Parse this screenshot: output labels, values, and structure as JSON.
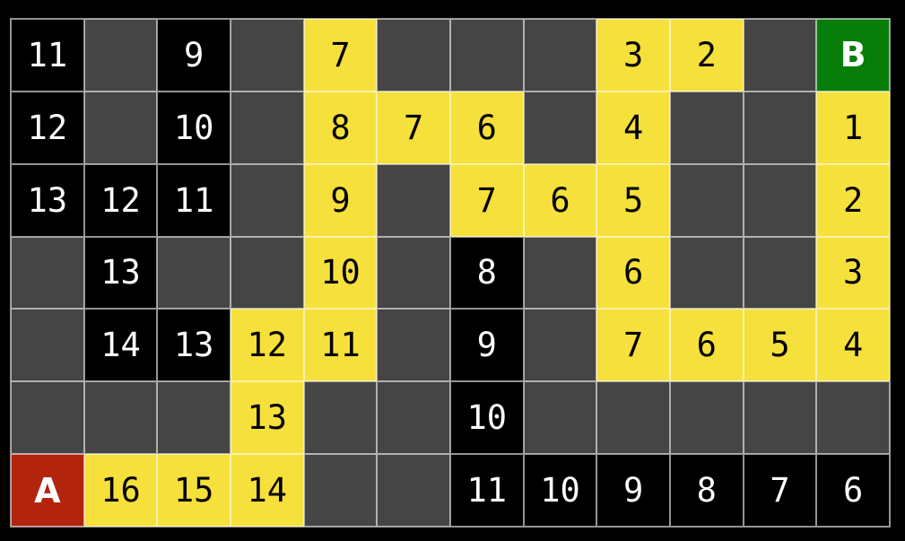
{
  "colors": {
    "background": "#000000",
    "gridline": "rgba(255,255,255,0.58)",
    "empty": "#454545",
    "visited": "#000000",
    "path": "#F6E03B",
    "start": "#B3240F",
    "goal": "#097D09",
    "text_light": "#FFFFFF",
    "text_dark": "#000000"
  },
  "start_label": "A",
  "goal_label": "B",
  "grid": {
    "rows": 7,
    "cols": 12,
    "cells": [
      [
        {
          "t": "11",
          "k": "visited"
        },
        {
          "t": "",
          "k": "empty"
        },
        {
          "t": "9",
          "k": "visited"
        },
        {
          "t": "",
          "k": "empty"
        },
        {
          "t": "7",
          "k": "path"
        },
        {
          "t": "",
          "k": "empty"
        },
        {
          "t": "",
          "k": "empty"
        },
        {
          "t": "",
          "k": "empty"
        },
        {
          "t": "3",
          "k": "path"
        },
        {
          "t": "2",
          "k": "path"
        },
        {
          "t": "",
          "k": "empty"
        },
        {
          "t": "B",
          "k": "goal"
        }
      ],
      [
        {
          "t": "12",
          "k": "visited"
        },
        {
          "t": "",
          "k": "empty"
        },
        {
          "t": "10",
          "k": "visited"
        },
        {
          "t": "",
          "k": "empty"
        },
        {
          "t": "8",
          "k": "path"
        },
        {
          "t": "7",
          "k": "path"
        },
        {
          "t": "6",
          "k": "path"
        },
        {
          "t": "",
          "k": "empty"
        },
        {
          "t": "4",
          "k": "path"
        },
        {
          "t": "",
          "k": "empty"
        },
        {
          "t": "",
          "k": "empty"
        },
        {
          "t": "1",
          "k": "path"
        }
      ],
      [
        {
          "t": "13",
          "k": "visited"
        },
        {
          "t": "12",
          "k": "visited"
        },
        {
          "t": "11",
          "k": "visited"
        },
        {
          "t": "",
          "k": "empty"
        },
        {
          "t": "9",
          "k": "path"
        },
        {
          "t": "",
          "k": "empty"
        },
        {
          "t": "7",
          "k": "path"
        },
        {
          "t": "6",
          "k": "path"
        },
        {
          "t": "5",
          "k": "path"
        },
        {
          "t": "",
          "k": "empty"
        },
        {
          "t": "",
          "k": "empty"
        },
        {
          "t": "2",
          "k": "path"
        }
      ],
      [
        {
          "t": "",
          "k": "empty"
        },
        {
          "t": "13",
          "k": "visited"
        },
        {
          "t": "",
          "k": "empty"
        },
        {
          "t": "",
          "k": "empty"
        },
        {
          "t": "10",
          "k": "path"
        },
        {
          "t": "",
          "k": "empty"
        },
        {
          "t": "8",
          "k": "visited"
        },
        {
          "t": "",
          "k": "empty"
        },
        {
          "t": "6",
          "k": "path"
        },
        {
          "t": "",
          "k": "empty"
        },
        {
          "t": "",
          "k": "empty"
        },
        {
          "t": "3",
          "k": "path"
        }
      ],
      [
        {
          "t": "",
          "k": "empty"
        },
        {
          "t": "14",
          "k": "visited"
        },
        {
          "t": "13",
          "k": "visited"
        },
        {
          "t": "12",
          "k": "path"
        },
        {
          "t": "11",
          "k": "path"
        },
        {
          "t": "",
          "k": "empty"
        },
        {
          "t": "9",
          "k": "visited"
        },
        {
          "t": "",
          "k": "empty"
        },
        {
          "t": "7",
          "k": "path"
        },
        {
          "t": "6",
          "k": "path"
        },
        {
          "t": "5",
          "k": "path"
        },
        {
          "t": "4",
          "k": "path"
        }
      ],
      [
        {
          "t": "",
          "k": "empty"
        },
        {
          "t": "",
          "k": "empty"
        },
        {
          "t": "",
          "k": "empty"
        },
        {
          "t": "13",
          "k": "path"
        },
        {
          "t": "",
          "k": "empty"
        },
        {
          "t": "",
          "k": "empty"
        },
        {
          "t": "10",
          "k": "visited"
        },
        {
          "t": "",
          "k": "empty"
        },
        {
          "t": "",
          "k": "empty"
        },
        {
          "t": "",
          "k": "empty"
        },
        {
          "t": "",
          "k": "empty"
        },
        {
          "t": "",
          "k": "empty"
        }
      ],
      [
        {
          "t": "A",
          "k": "start"
        },
        {
          "t": "16",
          "k": "path"
        },
        {
          "t": "15",
          "k": "path"
        },
        {
          "t": "14",
          "k": "path"
        },
        {
          "t": "",
          "k": "empty"
        },
        {
          "t": "",
          "k": "empty"
        },
        {
          "t": "11",
          "k": "visited"
        },
        {
          "t": "10",
          "k": "visited"
        },
        {
          "t": "9",
          "k": "visited"
        },
        {
          "t": "8",
          "k": "visited"
        },
        {
          "t": "7",
          "k": "visited"
        },
        {
          "t": "6",
          "k": "visited"
        }
      ]
    ]
  }
}
